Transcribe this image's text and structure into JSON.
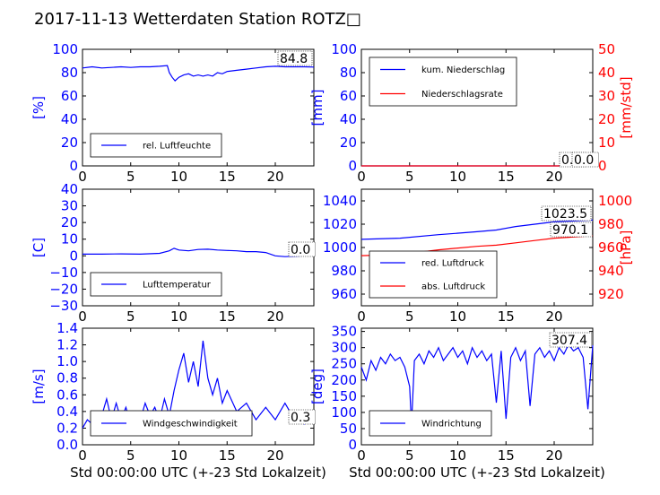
{
  "title": "2017-11-13 Wetterdaten Station ROTZ□",
  "chart_data": [
    {
      "id": "p1",
      "type": "line",
      "ylabel": "[%]",
      "xlim": [
        0,
        24
      ],
      "ylim": [
        0,
        100
      ],
      "xticks": [
        "0",
        "5",
        "10",
        "15",
        "20"
      ],
      "yticks": [
        "0",
        "20",
        "40",
        "60",
        "80",
        "100"
      ],
      "annotation": "84.8",
      "legend": "bottom-left",
      "series": [
        {
          "name": "rel. Luftfeuchte",
          "color": "#0000ff",
          "points": [
            [
              0,
              84
            ],
            [
              1,
              85
            ],
            [
              2,
              84
            ],
            [
              3,
              84.5
            ],
            [
              4,
              85
            ],
            [
              5,
              84.5
            ],
            [
              6,
              85
            ],
            [
              7,
              85
            ],
            [
              8,
              85.5
            ],
            [
              8.8,
              86
            ],
            [
              9,
              80
            ],
            [
              9.3,
              76
            ],
            [
              9.6,
              73
            ],
            [
              10,
              76
            ],
            [
              10.5,
              78
            ],
            [
              11,
              79
            ],
            [
              11.5,
              77
            ],
            [
              12,
              78
            ],
            [
              12.5,
              77
            ],
            [
              13,
              78
            ],
            [
              13.5,
              77
            ],
            [
              14,
              80
            ],
            [
              14.5,
              79
            ],
            [
              15,
              81
            ],
            [
              16,
              82
            ],
            [
              17,
              83
            ],
            [
              18,
              84
            ],
            [
              19,
              85
            ],
            [
              20,
              85.5
            ],
            [
              21,
              85
            ],
            [
              22,
              85
            ],
            [
              23,
              85
            ],
            [
              24,
              84.8
            ]
          ]
        }
      ]
    },
    {
      "id": "p2",
      "type": "line",
      "ylabel": "[mm]",
      "y2label": "[mm/std]",
      "xlim": [
        0,
        24
      ],
      "ylim": [
        0,
        100
      ],
      "y2lim": [
        0,
        50
      ],
      "xticks": [
        "0",
        "5",
        "10",
        "15",
        "20"
      ],
      "yticks": [
        "0",
        "20",
        "40",
        "60",
        "80",
        "100"
      ],
      "y2ticks": [
        "0",
        "10",
        "20",
        "30",
        "40",
        "50"
      ],
      "annotations": [
        "0.0",
        "0.0"
      ],
      "legend": "top-left",
      "series": [
        {
          "name": "kum. Niederschlag",
          "color": "#0000ff",
          "axis": "left",
          "points": [
            [
              0,
              0
            ],
            [
              24,
              0
            ]
          ]
        },
        {
          "name": "Niederschlagsrate",
          "color": "#ff0000",
          "axis": "right",
          "points": [
            [
              0,
              0
            ],
            [
              24,
              0
            ]
          ]
        }
      ]
    },
    {
      "id": "p3",
      "type": "line",
      "ylabel": "[C]",
      "xlim": [
        0,
        24
      ],
      "ylim": [
        -30,
        40
      ],
      "xticks": [
        "0",
        "5",
        "10",
        "15",
        "20"
      ],
      "yticks": [
        "−30",
        "−20",
        "−10",
        "0",
        "10",
        "20",
        "30",
        "40"
      ],
      "annotation": "0.0",
      "legend": "bottom-left",
      "series": [
        {
          "name": "Lufttemperatur",
          "color": "#0000ff",
          "points": [
            [
              0,
              1
            ],
            [
              2,
              1
            ],
            [
              4,
              1.2
            ],
            [
              6,
              1
            ],
            [
              8,
              1.5
            ],
            [
              9,
              3
            ],
            [
              9.5,
              4.5
            ],
            [
              10,
              3.5
            ],
            [
              11,
              3
            ],
            [
              12,
              3.8
            ],
            [
              13,
              4
            ],
            [
              14,
              3.5
            ],
            [
              15,
              3.2
            ],
            [
              16,
              3
            ],
            [
              17,
              2.5
            ],
            [
              18,
              2.5
            ],
            [
              19,
              2
            ],
            [
              20,
              0
            ],
            [
              21,
              -0.5
            ],
            [
              22,
              -0.3
            ],
            [
              23,
              0
            ],
            [
              24,
              0
            ]
          ]
        }
      ]
    },
    {
      "id": "p4",
      "type": "line",
      "ylabel": "",
      "y2label": "[hPa]",
      "xlim": [
        0,
        24
      ],
      "ylim": [
        950,
        1050
      ],
      "y2lim": [
        910,
        1010
      ],
      "xticks": [
        "0",
        "5",
        "10",
        "15",
        "20"
      ],
      "yticks": [
        "960",
        "980",
        "1000",
        "1020",
        "1040"
      ],
      "y2ticks": [
        "920",
        "940",
        "960",
        "980",
        "1000"
      ],
      "annotations": [
        "1023.5",
        "970.1"
      ],
      "legend": "bottom-left",
      "series": [
        {
          "name": "red. Luftdruck",
          "color": "#0000ff",
          "axis": "left",
          "points": [
            [
              0,
              1007
            ],
            [
              4,
              1008
            ],
            [
              8,
              1011
            ],
            [
              12,
              1013.5
            ],
            [
              14,
              1015
            ],
            [
              16,
              1018
            ],
            [
              18,
              1020
            ],
            [
              20,
              1022
            ],
            [
              24,
              1023.5
            ]
          ]
        },
        {
          "name": "abs. Luftdruck",
          "color": "#ff0000",
          "axis": "right",
          "points": [
            [
              0,
              953
            ],
            [
              4,
              954
            ],
            [
              8,
              958
            ],
            [
              12,
              961
            ],
            [
              14,
              962
            ],
            [
              16,
              964
            ],
            [
              18,
              966
            ],
            [
              20,
              968
            ],
            [
              24,
              970.1
            ]
          ]
        }
      ]
    },
    {
      "id": "p5",
      "type": "line",
      "ylabel": "[m/s]",
      "xlabel": "Std 00:00:00 UTC (+-23 Std Lokalzeit)",
      "xlim": [
        0,
        24
      ],
      "ylim": [
        0,
        1.4
      ],
      "xticks": [
        "0",
        "5",
        "10",
        "15",
        "20"
      ],
      "yticks": [
        "0.0",
        "0.2",
        "0.4",
        "0.6",
        "0.8",
        "1.0",
        "1.2",
        "1.4"
      ],
      "annotation": "0.3",
      "legend": "bottom-left",
      "series": [
        {
          "name": "Windgeschwindigkeit",
          "color": "#0000ff",
          "points": [
            [
              0,
              0.2
            ],
            [
              0.5,
              0.3
            ],
            [
              1,
              0.25
            ],
            [
              1.5,
              0.4
            ],
            [
              2,
              0.35
            ],
            [
              2.5,
              0.55
            ],
            [
              3,
              0.3
            ],
            [
              3.5,
              0.5
            ],
            [
              4,
              0.3
            ],
            [
              4.5,
              0.45
            ],
            [
              5,
              0.25
            ],
            [
              5.5,
              0.4
            ],
            [
              6,
              0.3
            ],
            [
              6.5,
              0.5
            ],
            [
              7,
              0.35
            ],
            [
              7.5,
              0.45
            ],
            [
              8,
              0.3
            ],
            [
              8.5,
              0.55
            ],
            [
              9,
              0.35
            ],
            [
              9.5,
              0.65
            ],
            [
              10,
              0.9
            ],
            [
              10.5,
              1.1
            ],
            [
              11,
              0.75
            ],
            [
              11.5,
              1.0
            ],
            [
              12,
              0.7
            ],
            [
              12.5,
              1.25
            ],
            [
              13,
              0.8
            ],
            [
              13.5,
              0.6
            ],
            [
              14,
              0.8
            ],
            [
              14.5,
              0.5
            ],
            [
              15,
              0.65
            ],
            [
              16,
              0.4
            ],
            [
              17,
              0.5
            ],
            [
              18,
              0.3
            ],
            [
              19,
              0.45
            ],
            [
              20,
              0.3
            ],
            [
              21,
              0.5
            ],
            [
              22,
              0.3
            ],
            [
              23,
              0.25
            ],
            [
              24,
              0.3
            ]
          ]
        }
      ]
    },
    {
      "id": "p6",
      "type": "line",
      "ylabel": "[deg]",
      "xlabel": "Std 00:00:00 UTC (+-23 Std Lokalzeit)",
      "xlim": [
        0,
        24
      ],
      "ylim": [
        0,
        360
      ],
      "xticks": [
        "0",
        "5",
        "10",
        "15",
        "20"
      ],
      "yticks": [
        "0",
        "50",
        "100",
        "150",
        "200",
        "250",
        "300",
        "350"
      ],
      "annotation": "307.4",
      "legend": "bottom-left",
      "series": [
        {
          "name": "Windrichtung",
          "color": "#0000ff",
          "points": [
            [
              0,
              240
            ],
            [
              0.5,
              200
            ],
            [
              1,
              260
            ],
            [
              1.5,
              230
            ],
            [
              2,
              270
            ],
            [
              2.5,
              250
            ],
            [
              3,
              280
            ],
            [
              3.5,
              260
            ],
            [
              4,
              270
            ],
            [
              4.5,
              240
            ],
            [
              5,
              180
            ],
            [
              5.2,
              60
            ],
            [
              5.5,
              260
            ],
            [
              6,
              280
            ],
            [
              6.5,
              250
            ],
            [
              7,
              290
            ],
            [
              7.5,
              270
            ],
            [
              8,
              300
            ],
            [
              8.5,
              260
            ],
            [
              9,
              280
            ],
            [
              9.5,
              300
            ],
            [
              10,
              270
            ],
            [
              10.5,
              290
            ],
            [
              11,
              250
            ],
            [
              11.5,
              300
            ],
            [
              12,
              270
            ],
            [
              12.5,
              290
            ],
            [
              13,
              260
            ],
            [
              13.5,
              280
            ],
            [
              14,
              130
            ],
            [
              14.5,
              290
            ],
            [
              15,
              80
            ],
            [
              15.5,
              270
            ],
            [
              16,
              300
            ],
            [
              16.5,
              260
            ],
            [
              17,
              290
            ],
            [
              17.5,
              120
            ],
            [
              18,
              280
            ],
            [
              18.5,
              300
            ],
            [
              19,
              270
            ],
            [
              19.5,
              290
            ],
            [
              20,
              260
            ],
            [
              20.5,
              300
            ],
            [
              21,
              280
            ],
            [
              21.5,
              310
            ],
            [
              22,
              290
            ],
            [
              22.5,
              300
            ],
            [
              23,
              270
            ],
            [
              23.5,
              110
            ],
            [
              24,
              307
            ]
          ]
        }
      ]
    }
  ]
}
